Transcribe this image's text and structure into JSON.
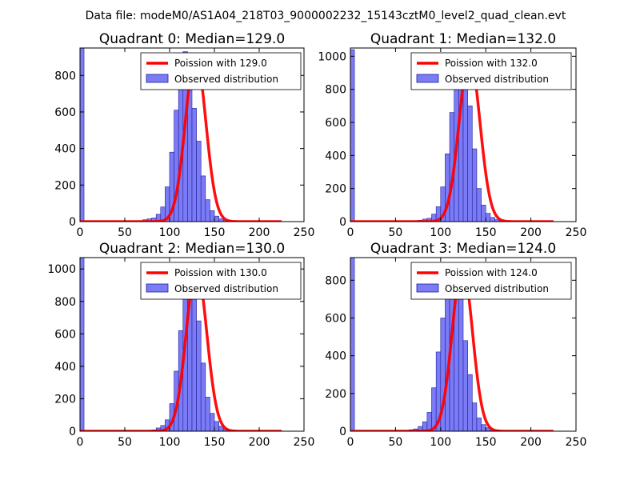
{
  "suptitle": "Data file: modeM0/AS1A04_218T03_9000002232_15143cztM0_level2_quad_clean.evt",
  "colors": {
    "bar_fill": "#7b7bf5",
    "bar_edge": "#1f1f9a",
    "curve": "#ff0000",
    "axis": "#000000"
  },
  "chart_data": [
    {
      "type": "bar",
      "title": "Quadrant 0: Median=129.0",
      "median": 129.0,
      "xlim": [
        0,
        250
      ],
      "ylim": [
        0,
        950
      ],
      "xticks": [
        0,
        50,
        100,
        150,
        200,
        250
      ],
      "yticks": [
        0,
        200,
        400,
        600,
        800
      ],
      "legend": {
        "curve_label": "Poission with 129.0",
        "bar_label": "Observed distribution",
        "loc": "upper right"
      },
      "first_bin": {
        "x0": 0,
        "x1": 4.5,
        "count": 950
      },
      "bins": {
        "start": 65,
        "width": 5,
        "counts": [
          5,
          10,
          15,
          20,
          40,
          80,
          190,
          380,
          610,
          840,
          930,
          810,
          620,
          440,
          250,
          120,
          60,
          30,
          15,
          8,
          5,
          3,
          2,
          1
        ]
      },
      "poisson": {
        "peak": 910,
        "sigma": 11.36
      }
    },
    {
      "type": "bar",
      "title": "Quadrant 1: Median=132.0",
      "median": 132.0,
      "xlim": [
        0,
        250
      ],
      "ylim": [
        0,
        1050
      ],
      "xticks": [
        0,
        50,
        100,
        150,
        200,
        250
      ],
      "yticks": [
        0,
        200,
        400,
        600,
        800,
        1000
      ],
      "legend": {
        "curve_label": "Poission with 132.0",
        "bar_label": "Observed distribution",
        "loc": "upper right"
      },
      "first_bin": {
        "x0": 0,
        "x1": 4.5,
        "count": 1040
      },
      "bins": {
        "start": 70,
        "width": 5,
        "counts": [
          4,
          8,
          15,
          20,
          45,
          90,
          210,
          410,
          660,
          880,
          990,
          890,
          700,
          440,
          200,
          100,
          50,
          25,
          12,
          6,
          3,
          2,
          1
        ]
      },
      "poisson": {
        "peak": 1000,
        "sigma": 11.49
      }
    },
    {
      "type": "bar",
      "title": "Quadrant 2: Median=130.0",
      "median": 130.0,
      "xlim": [
        0,
        250
      ],
      "ylim": [
        0,
        1070
      ],
      "xticks": [
        0,
        50,
        100,
        150,
        200,
        250
      ],
      "yticks": [
        0,
        200,
        400,
        600,
        800,
        1000
      ],
      "legend": {
        "curve_label": "Poission with 130.0",
        "bar_label": "Observed distribution",
        "loc": "upper right"
      },
      "first_bin": {
        "x0": 0,
        "x1": 4.5,
        "count": 1070
      },
      "bins": {
        "start": 75,
        "width": 5,
        "counts": [
          3,
          8,
          20,
          35,
          70,
          170,
          370,
          620,
          830,
          970,
          930,
          680,
          420,
          210,
          110,
          60,
          30,
          15,
          8,
          4,
          2,
          1
        ]
      },
      "poisson": {
        "peak": 1010,
        "sigma": 11.4
      }
    },
    {
      "type": "bar",
      "title": "Quadrant 3: Median=124.0",
      "median": 124.0,
      "xlim": [
        0,
        250
      ],
      "ylim": [
        0,
        920
      ],
      "xticks": [
        0,
        50,
        100,
        150,
        200,
        250
      ],
      "yticks": [
        0,
        200,
        400,
        600,
        800
      ],
      "legend": {
        "curve_label": "Poission with 124.0",
        "bar_label": "Observed distribution",
        "loc": "upper right"
      },
      "first_bin": {
        "x0": 0,
        "x1": 4.5,
        "count": 920
      },
      "bins": {
        "start": 55,
        "width": 5,
        "counts": [
          3,
          5,
          8,
          12,
          25,
          50,
          100,
          230,
          420,
          600,
          760,
          870,
          840,
          700,
          480,
          300,
          150,
          70,
          35,
          18,
          9,
          5,
          2,
          1
        ]
      },
      "poisson": {
        "peak": 880,
        "sigma": 11.14
      }
    }
  ]
}
